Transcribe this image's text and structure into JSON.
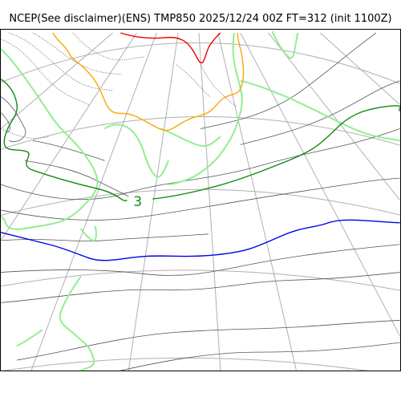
{
  "title": "NCEP(See disclaimer)(ENS) TMP850 2025/12/24 00Z FT=312 (init 1100Z)",
  "map": {
    "variable": "TMP850",
    "labels": {
      "contour_3": "3"
    },
    "colors": {
      "graticule": "#b0b0b0",
      "coastline": "#90ee90",
      "isotherm_thin": "#555555",
      "isotherm_dotted": "#777777",
      "isotherm_3": "#138a13",
      "isotherm_0": "#0000ee",
      "isotherm_orange": "#ffa500",
      "isotherm_red": "#ee0000"
    }
  }
}
